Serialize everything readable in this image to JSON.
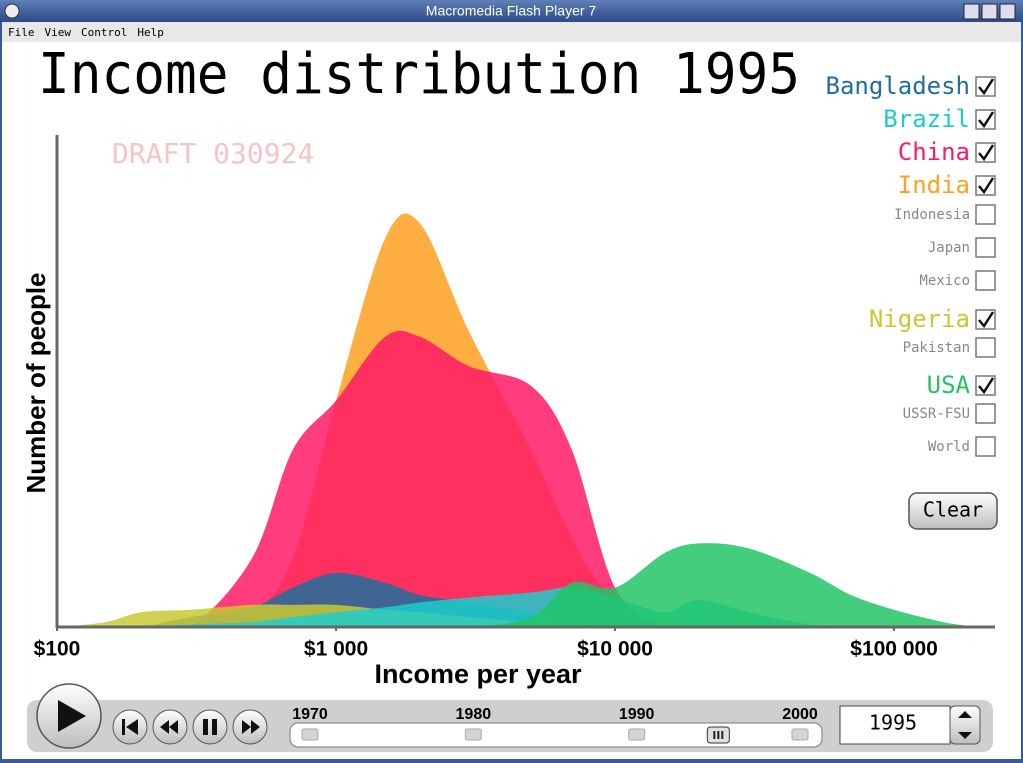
{
  "window": {
    "title": "Macromedia Flash Player 7"
  },
  "menu": [
    "File",
    "View",
    "Control",
    "Help"
  ],
  "chart_data": {
    "type": "area",
    "title": "Income distribution 1995",
    "annotation": "DRAFT 030924",
    "x_label": "Income per year",
    "y_label": "Number of people",
    "log_x": true,
    "xlim": [
      100,
      230000
    ],
    "ylim": [
      0,
      100
    ],
    "xticks": [
      {
        "value": 100,
        "label": "$100"
      },
      {
        "value": 1000,
        "label": "$1 000"
      },
      {
        "value": 10000,
        "label": "$10 000"
      },
      {
        "value": 100000,
        "label": "$100 000"
      }
    ],
    "x": [
      100,
      150,
      200,
      300,
      500,
      700,
      1000,
      1500,
      2000,
      3000,
      5000,
      7000,
      10000,
      15000,
      20000,
      30000,
      50000,
      70000,
      100000,
      150000,
      200000
    ],
    "series": [
      {
        "name": "India",
        "color": "#ffa020",
        "values": [
          0,
          0,
          0,
          0,
          3,
          14,
          46,
          79,
          82,
          60,
          36,
          18,
          5,
          0,
          0,
          0,
          0,
          0,
          0,
          0,
          0
        ]
      },
      {
        "name": "China",
        "color": "#ff1a66",
        "values": [
          0,
          0,
          0,
          0,
          14,
          36,
          46,
          59,
          59,
          53,
          49,
          36,
          8,
          0,
          0,
          0,
          0,
          0,
          0,
          0,
          0
        ]
      },
      {
        "name": "Bangladesh",
        "color": "#1f6e9c",
        "values": [
          0,
          0,
          0,
          2,
          4,
          8,
          11,
          9,
          6.5,
          5,
          3,
          1.5,
          0,
          0,
          0,
          0,
          0,
          0,
          0,
          0,
          0
        ]
      },
      {
        "name": "Nigeria",
        "color": "#c8c832",
        "values": [
          0,
          1,
          3,
          3.5,
          4.5,
          4.5,
          4.5,
          3.5,
          3,
          2,
          1,
          0.5,
          0,
          0,
          0,
          0,
          0,
          0,
          0,
          0,
          0
        ]
      },
      {
        "name": "Brazil",
        "color": "#1ccccc",
        "values": [
          0,
          0,
          0,
          0.5,
          1,
          2,
          3,
          4,
          5,
          6,
          7,
          8,
          6,
          3,
          5.5,
          3,
          0.5,
          0,
          0,
          0,
          0
        ]
      },
      {
        "name": "USA",
        "color": "#22c466",
        "values": [
          0,
          0,
          0,
          0,
          0,
          0,
          0,
          0,
          0,
          0,
          2,
          9,
          8,
          15,
          17,
          16,
          11,
          6.5,
          3.5,
          1,
          0
        ]
      }
    ]
  },
  "country_list": [
    {
      "name": "Bangladesh",
      "checked": true
    },
    {
      "name": "Brazil",
      "checked": true
    },
    {
      "name": "China",
      "checked": true
    },
    {
      "name": "India",
      "checked": true
    },
    {
      "name": "Indonesia",
      "checked": false
    },
    {
      "name": "Japan",
      "checked": false
    },
    {
      "name": "Mexico",
      "checked": false
    },
    {
      "name": "Nigeria",
      "checked": true
    },
    {
      "name": "Pakistan",
      "checked": false
    },
    {
      "name": "USA",
      "checked": true
    },
    {
      "name": "USSR-FSU",
      "checked": false
    },
    {
      "name": "World",
      "checked": false
    }
  ],
  "clear_button": "Clear",
  "slider": {
    "ticks": [
      1970,
      1980,
      1990,
      2000
    ],
    "value": 1995
  }
}
